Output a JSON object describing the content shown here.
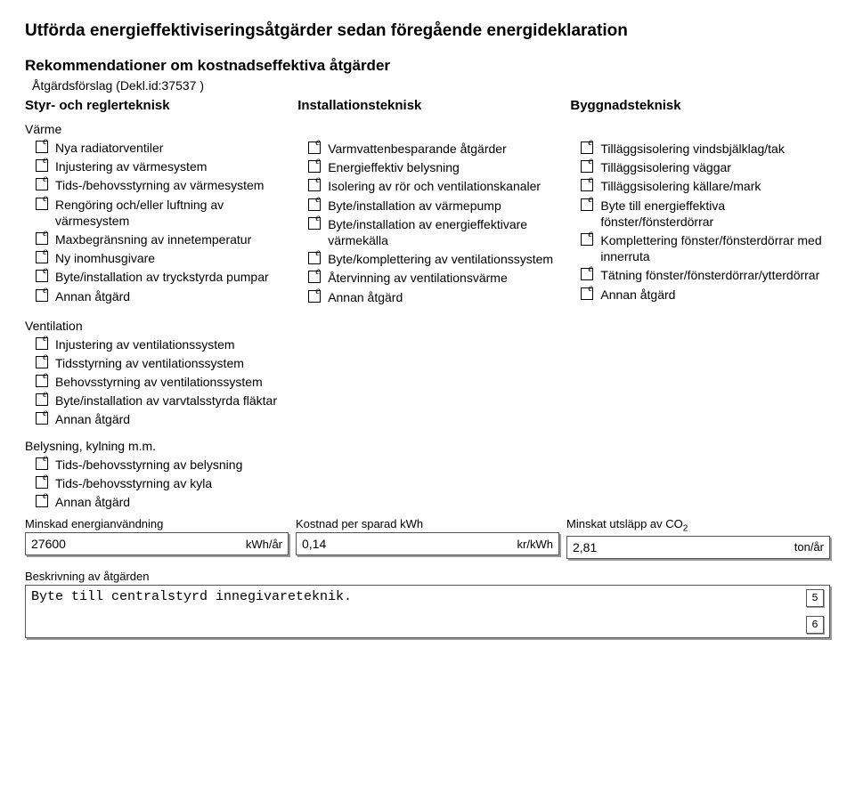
{
  "title": "Utförda energieffektiviseringsåtgärder sedan föregående energideklaration",
  "subtitle": "Rekommendationer om kostnadseffektiva åtgärder",
  "proposal": "Åtgärdsförslag (Dekl.id:37537 )",
  "columns": {
    "styr": {
      "header": "Styr- och reglerteknisk",
      "group1_label": "Värme",
      "group1": [
        "Nya radiatorventiler",
        "Injustering av värmesystem",
        "Tids-/behovsstyrning av värmesystem",
        "Rengöring och/eller luftning av värmesystem",
        "Maxbegränsning av innetemperatur",
        "Ny inomhusgivare",
        "Byte/installation av tryckstyrda pumpar",
        "Annan åtgärd"
      ],
      "group2_label": "Ventilation",
      "group2": [
        "Injustering av ventilationssystem",
        "Tidsstyrning av ventilationssystem",
        "Behovsstyrning av ventilationssystem",
        "Byte/installation av varvtalsstyrda fläktar",
        "Annan åtgärd"
      ],
      "group3_label": "Belysning, kylning m.m.",
      "group3": [
        "Tids-/behovsstyrning av belysning",
        "Tids-/behovsstyrning av kyla",
        "Annan åtgärd"
      ]
    },
    "install": {
      "header": "Installationsteknisk",
      "items": [
        "Varmvattenbesparande åtgärder",
        "Energieffektiv belysning",
        "Isolering av rör och ventilationskanaler",
        "Byte/installation av värmepump",
        "Byte/installation av energieffektivare värmekälla",
        "Byte/komplettering av ventilationssystem",
        "Återvinning av ventilationsvärme",
        "Annan åtgärd"
      ]
    },
    "bygg": {
      "header": "Byggnadsteknisk",
      "items": [
        "Tilläggsisolering vindsbjälklag/tak",
        "Tilläggsisolering väggar",
        "Tilläggsisolering källare/mark",
        "Byte till energieffektiva fönster/fönsterdörrar",
        "Komplettering fönster/fönsterdörrar med innerruta",
        "Tätning fönster/fönsterdörrar/ytterdörrar",
        "Annan åtgärd"
      ]
    }
  },
  "fields": {
    "reduced_label": "Minskad energianvändning",
    "reduced_value": "27600",
    "reduced_unit": "kWh/år",
    "cost_label": "Kostnad per sparad kWh",
    "cost_value": "0,14",
    "cost_unit": "kr/kWh",
    "co2_label_pre": "Minskat utsläpp av CO",
    "co2_label_sub": "2",
    "co2_value": "2,81",
    "co2_unit": "ton/år"
  },
  "description_label": "Beskrivning av åtgärden",
  "description_value": "Byte till centralstyrd innegivareteknik.",
  "minibox_top": "5",
  "minibox_bot": "6"
}
